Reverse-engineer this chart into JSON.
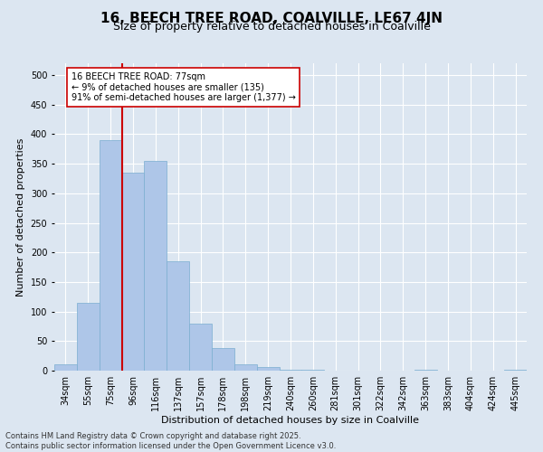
{
  "title": "16, BEECH TREE ROAD, COALVILLE, LE67 4JN",
  "subtitle": "Size of property relative to detached houses in Coalville",
  "xlabel": "Distribution of detached houses by size in Coalville",
  "ylabel": "Number of detached properties",
  "categories": [
    "34sqm",
    "55sqm",
    "75sqm",
    "96sqm",
    "116sqm",
    "137sqm",
    "157sqm",
    "178sqm",
    "198sqm",
    "219sqm",
    "240sqm",
    "260sqm",
    "281sqm",
    "301sqm",
    "322sqm",
    "342sqm",
    "363sqm",
    "383sqm",
    "404sqm",
    "424sqm",
    "445sqm"
  ],
  "values": [
    10,
    115,
    390,
    335,
    355,
    185,
    80,
    38,
    10,
    6,
    2,
    1,
    0,
    0,
    0,
    0,
    1,
    0,
    0,
    0,
    2
  ],
  "bar_color": "#aec6e8",
  "bar_edge_color": "#7aaed0",
  "vline_index": 2,
  "vline_color": "#cc0000",
  "annotation_text": "16 BEECH TREE ROAD: 77sqm\n← 9% of detached houses are smaller (135)\n91% of semi-detached houses are larger (1,377) →",
  "annotation_box_color": "#ffffff",
  "annotation_box_edge_color": "#cc0000",
  "ylim": [
    0,
    520
  ],
  "yticks": [
    0,
    50,
    100,
    150,
    200,
    250,
    300,
    350,
    400,
    450,
    500
  ],
  "background_color": "#dce6f1",
  "plot_background_color": "#dce6f1",
  "footer_line1": "Contains HM Land Registry data © Crown copyright and database right 2025.",
  "footer_line2": "Contains public sector information licensed under the Open Government Licence v3.0.",
  "title_fontsize": 11,
  "subtitle_fontsize": 9,
  "annotation_fontsize": 7,
  "footer_fontsize": 6,
  "ylabel_fontsize": 8,
  "xlabel_fontsize": 8,
  "tick_fontsize": 7
}
